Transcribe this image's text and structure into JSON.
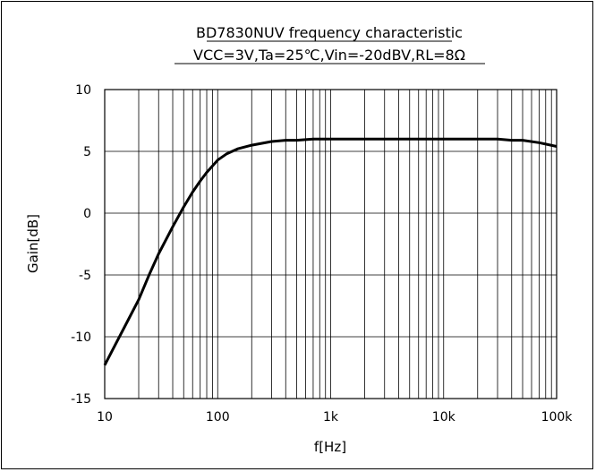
{
  "chart_data": {
    "type": "line",
    "title": "BD7830NUV frequency characteristic",
    "subtitle": "VCC=3V,Ta=25℃,Vin=-20dBV,RL=8Ω",
    "xlabel": "f[Hz]",
    "ylabel": "Gain[dB]",
    "xscale": "log",
    "xlim": [
      10,
      100000
    ],
    "ylim": [
      -15,
      10
    ],
    "grid": true,
    "x_ticks": [
      10,
      100,
      1000,
      10000,
      100000
    ],
    "x_tick_labels": [
      "10",
      "100",
      "1k",
      "10k",
      "100k"
    ],
    "y_ticks": [
      10,
      5,
      0,
      -5,
      -10,
      -15
    ],
    "y_tick_labels": [
      "10",
      "5",
      "0",
      "-5",
      "-10",
      "-15"
    ],
    "series": [
      {
        "color": "#000000",
        "x": [
          10,
          12,
          15,
          20,
          25,
          30,
          40,
          50,
          60,
          70,
          80,
          100,
          120,
          150,
          200,
          300,
          400,
          500,
          700,
          1000,
          2000,
          5000,
          10000,
          20000,
          30000,
          40000,
          50000,
          70000,
          100000
        ],
        "y": [
          -12.3,
          -10.9,
          -9.2,
          -7.0,
          -4.9,
          -3.3,
          -1.1,
          0.5,
          1.7,
          2.6,
          3.3,
          4.3,
          4.8,
          5.2,
          5.5,
          5.8,
          5.9,
          5.9,
          6.0,
          6.0,
          6.0,
          6.0,
          6.0,
          6.0,
          6.0,
          5.9,
          5.9,
          5.7,
          5.4
        ]
      }
    ]
  }
}
